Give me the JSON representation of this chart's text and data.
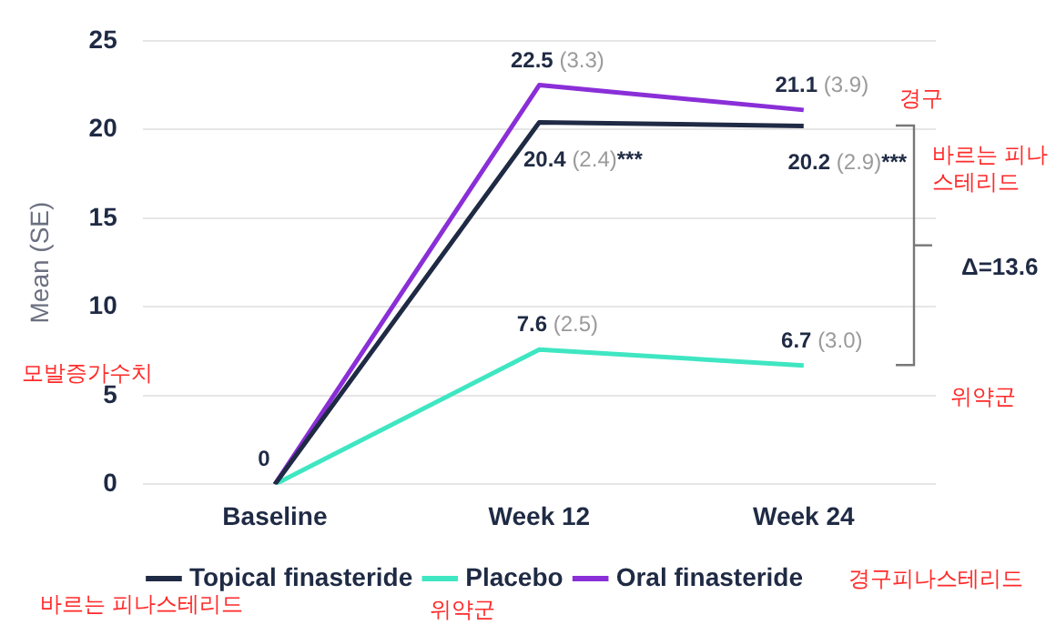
{
  "chart_data": {
    "type": "line",
    "ylabel": "Mean (SE)",
    "categories": [
      "Baseline",
      "Week 12",
      "Week 24"
    ],
    "ylim": [
      0,
      25
    ],
    "yticks": [
      0,
      5,
      10,
      15,
      20,
      25
    ],
    "grid": "y",
    "legend": "bottom",
    "marker": "none",
    "line_style": "solid",
    "series": [
      {
        "name": "Topical finasteride",
        "color": "#1f2a44",
        "values": [
          0,
          20.4,
          20.2
        ],
        "value_labels": [
          "0",
          "20.4 (2.4)***",
          "20.2 (2.9)***"
        ]
      },
      {
        "name": "Placebo",
        "color": "#3fe6c2",
        "values": [
          0,
          7.6,
          6.7
        ],
        "value_labels": [
          null,
          "7.6 (2.5)",
          "6.7 (3.0)"
        ]
      },
      {
        "name": "Oral finasteride",
        "color": "#8a2fd8",
        "values": [
          0,
          22.5,
          21.1
        ],
        "value_labels": [
          null,
          "22.5 (3.3)",
          "21.1 (3.9)"
        ]
      }
    ],
    "annotations": [
      "Δ=13.6",
      "경구",
      "바르는 피나스테리드",
      "위약군",
      "모발증가수치",
      "바르는 피나스테리드",
      "위약군",
      "경구피나스테리드"
    ]
  }
}
